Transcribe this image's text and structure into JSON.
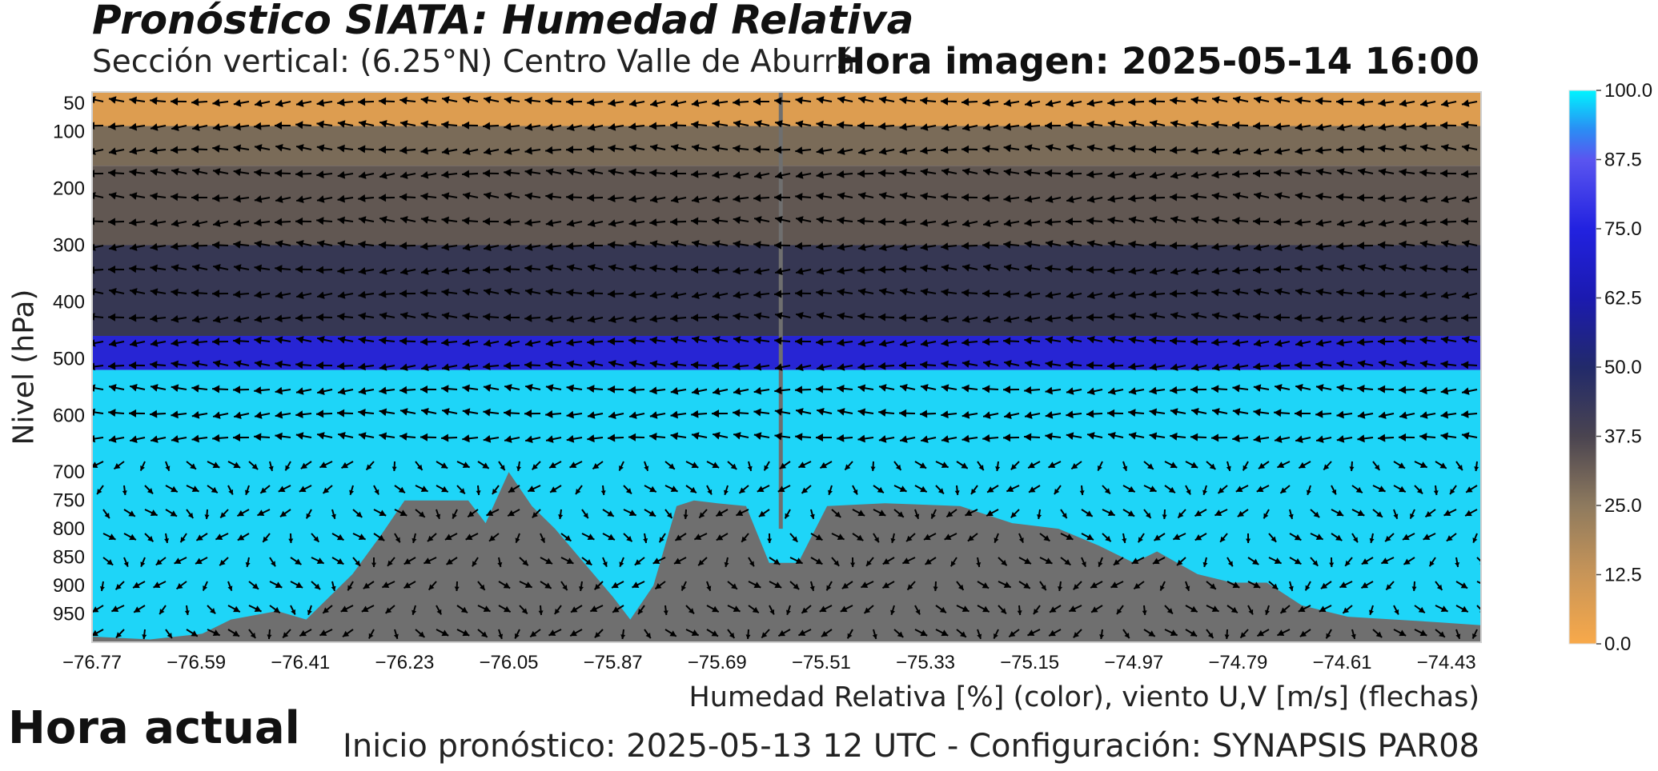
{
  "header": {
    "title": "Pronóstico SIATA: Humedad Relativa",
    "subtitle": "Sección vertical: (6.25°N) Centro Valle de Aburrá",
    "hora_imagen": "Hora imagen: 2025-05-14 16:00"
  },
  "footer": {
    "xlabel_caption": "Humedad Relativa [%] (color), viento U,V [m/s] (flechas)",
    "inicio": "Inicio pronóstico: 2025-05-13 12 UTC - Configuración: SYNAPSIS PAR08",
    "hora_actual": "Hora actual"
  },
  "chart_data": {
    "type": "heatmap",
    "xlabel": "",
    "ylabel": "Nivel (hPa)",
    "x_ticks": [
      "−76.77",
      "−76.59",
      "−76.41",
      "−76.23",
      "−76.05",
      "−75.87",
      "−75.69",
      "−75.51",
      "−75.33",
      "−75.15",
      "−74.97",
      "−74.79",
      "−74.61",
      "−74.43"
    ],
    "x_tick_values": [
      -76.77,
      -76.59,
      -76.41,
      -76.23,
      -76.05,
      -75.87,
      -75.69,
      -75.51,
      -75.33,
      -75.15,
      -74.97,
      -74.79,
      -74.61,
      -74.43
    ],
    "xlim": [
      -76.77,
      -74.37
    ],
    "y_ticks": [
      "50",
      "100",
      "200",
      "300",
      "400",
      "500",
      "600",
      "700",
      "750",
      "800",
      "850",
      "900",
      "950"
    ],
    "y_tick_values": [
      50,
      100,
      200,
      300,
      400,
      500,
      600,
      700,
      750,
      800,
      850,
      900,
      950
    ],
    "ylim": [
      1000,
      30
    ],
    "colorbar": {
      "ticks": [
        "0.0",
        "12.5",
        "25.0",
        "37.5",
        "50.0",
        "62.5",
        "75.0",
        "87.5",
        "100.0"
      ],
      "range": [
        0,
        100
      ],
      "colors": [
        "#f8a94a",
        "#b48a5a",
        "#7a6b58",
        "#3c3a4a",
        "#1f2a78",
        "#1a1acd",
        "#5b4ff0",
        "#2fc6f4",
        "#00f0ff"
      ]
    },
    "vertical_line_lon": -75.58,
    "bands": [
      {
        "from": 30,
        "to": 90,
        "rh": 5
      },
      {
        "from": 90,
        "to": 160,
        "rh": 25
      },
      {
        "from": 160,
        "to": 300,
        "rh": 30
      },
      {
        "from": 300,
        "to": 460,
        "rh": 40
      },
      {
        "from": 460,
        "to": 520,
        "rh": 65
      },
      {
        "from": 520,
        "to": 1000,
        "rh": 92
      }
    ],
    "terrain": {
      "lon": [
        -76.77,
        -76.67,
        -76.58,
        -76.53,
        -76.45,
        -76.4,
        -76.32,
        -76.27,
        -76.23,
        -76.12,
        -76.09,
        -76.05,
        -76.01,
        -75.97,
        -75.92,
        -75.87,
        -75.84,
        -75.8,
        -75.76,
        -75.73,
        -75.69,
        -75.64,
        -75.6,
        -75.55,
        -75.5,
        -75.4,
        -75.27,
        -75.18,
        -75.1,
        -75.03,
        -74.97,
        -74.93,
        -74.86,
        -74.8,
        -74.74,
        -74.68,
        -74.6,
        -74.52,
        -74.44,
        -74.37
      ],
      "p": [
        990,
        995,
        985,
        960,
        945,
        960,
        880,
        810,
        750,
        750,
        790,
        700,
        760,
        800,
        860,
        920,
        960,
        900,
        760,
        750,
        755,
        760,
        860,
        860,
        760,
        755,
        760,
        790,
        800,
        830,
        860,
        840,
        880,
        895,
        895,
        935,
        955,
        960,
        965,
        970
      ]
    }
  }
}
